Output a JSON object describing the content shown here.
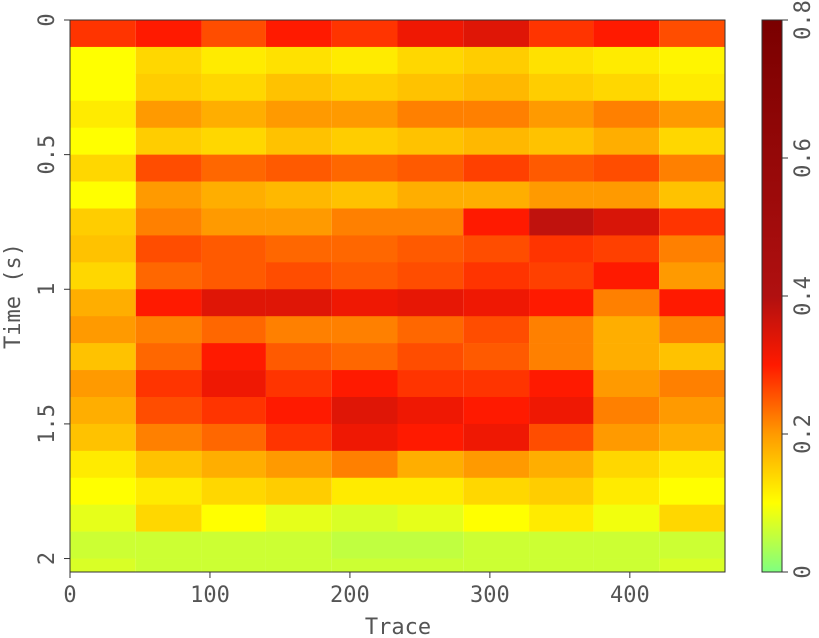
{
  "chart_data": {
    "type": "heatmap",
    "xlabel": "Trace",
    "ylabel": "Time (s)",
    "xlim": [
      0,
      468
    ],
    "xticks": [
      0,
      100,
      200,
      300,
      400
    ],
    "ylim": [
      2.05,
      0
    ],
    "yticks": [
      0,
      0.5,
      1,
      1.5,
      2
    ],
    "xbins": [
      0,
      47,
      94,
      140,
      187,
      234,
      281,
      328,
      374,
      421,
      468
    ],
    "ybins": [
      0,
      0.1,
      0.2,
      0.3,
      0.4,
      0.5,
      0.6,
      0.7,
      0.8,
      0.9,
      1.0,
      1.1,
      1.2,
      1.3,
      1.4,
      1.5,
      1.6,
      1.7,
      1.8,
      1.9,
      2.0,
      2.05
    ],
    "values": [
      [
        0.28,
        0.3,
        0.26,
        0.3,
        0.28,
        0.32,
        0.34,
        0.28,
        0.3,
        0.26
      ],
      [
        0.1,
        0.14,
        0.12,
        0.13,
        0.12,
        0.14,
        0.15,
        0.13,
        0.12,
        0.11
      ],
      [
        0.1,
        0.15,
        0.14,
        0.16,
        0.15,
        0.16,
        0.17,
        0.15,
        0.14,
        0.12
      ],
      [
        0.12,
        0.2,
        0.18,
        0.2,
        0.2,
        0.22,
        0.22,
        0.2,
        0.22,
        0.2
      ],
      [
        0.1,
        0.15,
        0.14,
        0.16,
        0.15,
        0.16,
        0.17,
        0.16,
        0.18,
        0.14
      ],
      [
        0.14,
        0.26,
        0.24,
        0.25,
        0.24,
        0.25,
        0.27,
        0.25,
        0.26,
        0.22
      ],
      [
        0.1,
        0.2,
        0.18,
        0.17,
        0.16,
        0.18,
        0.18,
        0.2,
        0.2,
        0.16
      ],
      [
        0.15,
        0.22,
        0.2,
        0.2,
        0.22,
        0.22,
        0.3,
        0.38,
        0.35,
        0.28
      ],
      [
        0.16,
        0.26,
        0.25,
        0.24,
        0.24,
        0.25,
        0.26,
        0.28,
        0.27,
        0.22
      ],
      [
        0.14,
        0.24,
        0.25,
        0.26,
        0.25,
        0.26,
        0.28,
        0.27,
        0.3,
        0.2
      ],
      [
        0.18,
        0.3,
        0.34,
        0.34,
        0.32,
        0.33,
        0.32,
        0.3,
        0.22,
        0.3
      ],
      [
        0.2,
        0.22,
        0.24,
        0.22,
        0.22,
        0.24,
        0.26,
        0.22,
        0.18,
        0.22
      ],
      [
        0.16,
        0.24,
        0.3,
        0.25,
        0.24,
        0.26,
        0.25,
        0.22,
        0.18,
        0.16
      ],
      [
        0.2,
        0.28,
        0.32,
        0.28,
        0.3,
        0.28,
        0.28,
        0.3,
        0.2,
        0.22
      ],
      [
        0.18,
        0.26,
        0.28,
        0.3,
        0.34,
        0.32,
        0.3,
        0.32,
        0.22,
        0.2
      ],
      [
        0.16,
        0.22,
        0.24,
        0.28,
        0.32,
        0.3,
        0.32,
        0.26,
        0.2,
        0.18
      ],
      [
        0.12,
        0.16,
        0.18,
        0.2,
        0.22,
        0.18,
        0.2,
        0.18,
        0.14,
        0.12
      ],
      [
        0.1,
        0.12,
        0.14,
        0.15,
        0.12,
        0.12,
        0.14,
        0.15,
        0.12,
        0.1
      ],
      [
        0.08,
        0.14,
        0.1,
        0.08,
        0.07,
        0.08,
        0.1,
        0.12,
        0.09,
        0.14
      ],
      [
        0.06,
        0.06,
        0.06,
        0.06,
        0.05,
        0.05,
        0.06,
        0.06,
        0.06,
        0.06
      ],
      [
        0.07,
        0.06,
        0.06,
        0.06,
        0.06,
        0.06,
        0.06,
        0.06,
        0.06,
        0.07
      ]
    ],
    "clim": [
      0,
      0.8
    ],
    "cticks": [
      0,
      0.2,
      0.4,
      0.6,
      0.8
    ],
    "colormap": [
      {
        "value": 0,
        "color": "#80ff80"
      },
      {
        "value": 0.1,
        "color": "#ffff00"
      },
      {
        "value": 0.2,
        "color": "#ff9a00"
      },
      {
        "value": 0.3,
        "color": "#ff1a00"
      },
      {
        "value": 0.4,
        "color": "#b01010"
      },
      {
        "value": 0.8,
        "color": "#7a0000"
      }
    ]
  }
}
